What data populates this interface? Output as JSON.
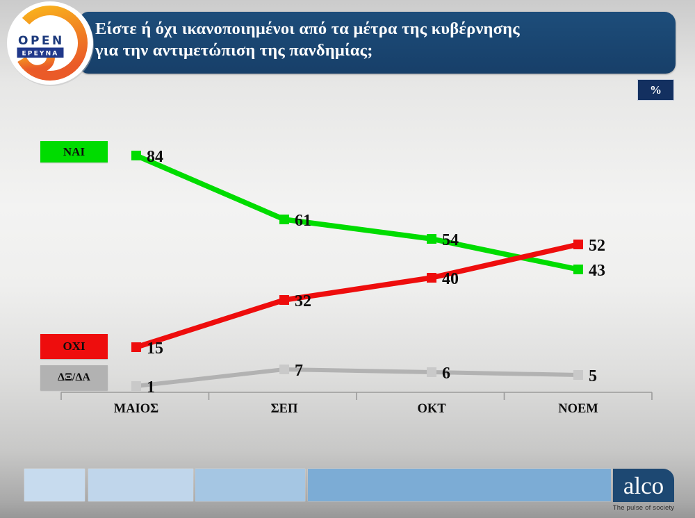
{
  "logo": {
    "brand": "OPEN",
    "sub": "ΕΡΕΥΝΑ"
  },
  "header": {
    "title_line1": "Είστε ή όχι ικανοποιημένοι από τα μέτρα της κυβέρνησης",
    "title_line2": "για την αντιμετώπιση της πανδημίας;"
  },
  "unit_badge": "%",
  "chart_data": {
    "type": "line",
    "title": "Είστε ή όχι ικανοποιημένοι από τα μέτρα της κυβέρνησης για την αντιμετώπιση της πανδημίας;",
    "unit": "%",
    "categories": [
      "ΜΑΙΟΣ",
      "ΣΕΠ",
      "ΟΚΤ",
      "ΝΟΕΜ"
    ],
    "series": [
      {
        "name": "ΝΑΙ",
        "color": "#00dc00",
        "marker_color": "#00dc00",
        "values": [
          84,
          61,
          54,
          43
        ]
      },
      {
        "name": "ΟΧΙ",
        "color": "#ee0d0d",
        "marker_color": "#ee0d0d",
        "values": [
          15,
          32,
          40,
          52
        ]
      },
      {
        "name": "ΔΞ/ΔΑ",
        "color": "#b2b2b2",
        "marker_color": "#c9c9c9",
        "values": [
          1,
          7,
          6,
          5
        ]
      }
    ],
    "ylim": [
      0,
      100
    ],
    "grid": false,
    "legend_position": "left",
    "value_labels": true
  },
  "footer": {
    "brand": "alco",
    "tagline": "The pulse of society",
    "bar_colors": [
      "#c7dbee",
      "#c0d6eb",
      "#a5c6e3",
      "#7cacd5"
    ]
  }
}
